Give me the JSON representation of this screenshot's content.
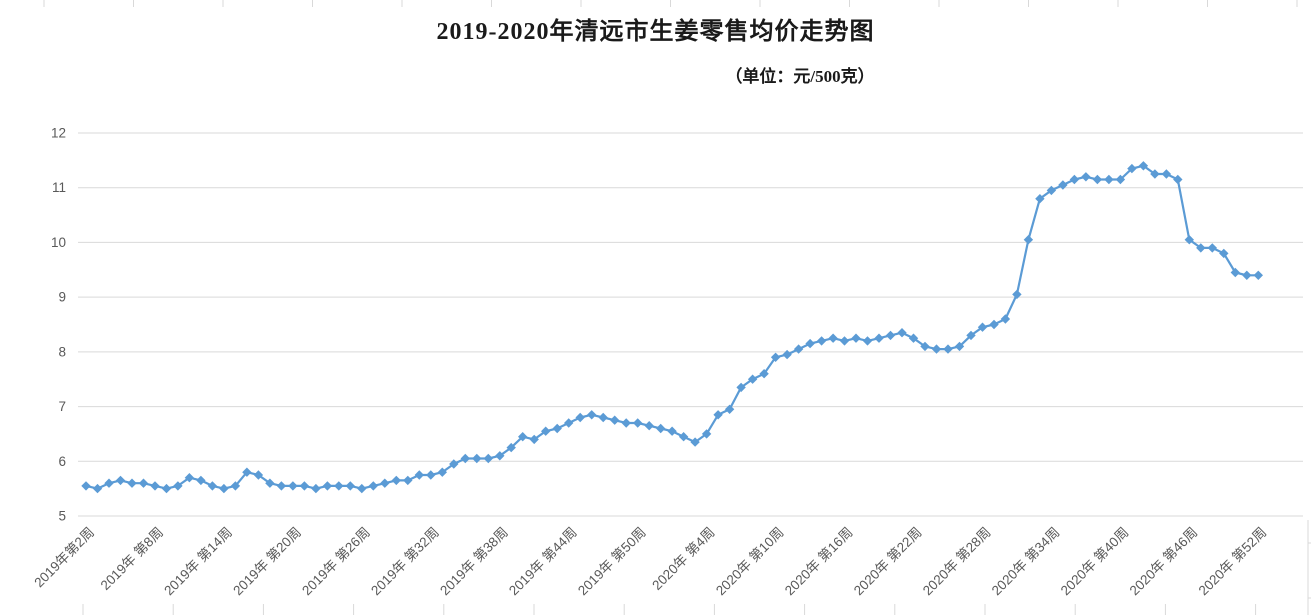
{
  "window": {
    "background": "#ffffff"
  },
  "chart_data": {
    "type": "line",
    "title": "2019-2020年清远市生姜零售均价走势图",
    "subtitle": "（单位：元/500克）",
    "xlabel": "",
    "ylabel": "",
    "ylim": [
      5,
      12
    ],
    "y_ticks": [
      5,
      6,
      7,
      8,
      9,
      10,
      11,
      12
    ],
    "grid": "horizontal",
    "legend_position": "none",
    "marker": "diamond",
    "x_points_per_tick": 6,
    "x_tick_labels": [
      "2019年第2周",
      "2019年 第8周",
      "2019年 第14周",
      "2019年 第20周",
      "2019年 第26周",
      "2019年 第32周",
      "2019年 第38周",
      "2019年 第44周",
      "2019年 第50周",
      "2020年 第4周",
      "2020年 第10周",
      "2020年 第16周",
      "2020年 第22周",
      "2020年 第28周",
      "2020年 第34周",
      "2020年 第40周",
      "2020年 第46周",
      "2020年 第52周"
    ],
    "values": [
      5.55,
      5.5,
      5.6,
      5.65,
      5.6,
      5.6,
      5.55,
      5.5,
      5.55,
      5.7,
      5.65,
      5.55,
      5.5,
      5.55,
      5.8,
      5.75,
      5.6,
      5.55,
      5.55,
      5.55,
      5.5,
      5.55,
      5.55,
      5.55,
      5.5,
      5.55,
      5.6,
      5.65,
      5.65,
      5.75,
      5.75,
      5.8,
      5.95,
      6.05,
      6.05,
      6.05,
      6.1,
      6.25,
      6.45,
      6.4,
      6.55,
      6.6,
      6.7,
      6.8,
      6.85,
      6.8,
      6.75,
      6.7,
      6.7,
      6.65,
      6.6,
      6.55,
      6.45,
      6.35,
      6.5,
      6.85,
      6.95,
      7.35,
      7.5,
      7.6,
      7.9,
      7.95,
      8.05,
      8.15,
      8.2,
      8.25,
      8.2,
      8.25,
      8.2,
      8.25,
      8.3,
      8.35,
      8.25,
      8.1,
      8.05,
      8.05,
      8.1,
      8.3,
      8.45,
      8.5,
      8.6,
      9.05,
      10.05,
      10.8,
      10.95,
      11.05,
      11.15,
      11.2,
      11.15,
      11.15,
      11.15,
      11.35,
      11.4,
      11.25,
      11.25,
      11.15,
      10.05,
      9.9,
      9.9,
      9.8,
      9.45,
      9.4,
      9.4
    ],
    "colors": {
      "series": "#5B9BD5",
      "gridline": "#D9D9D9",
      "axis_text": "#595959",
      "title_text": "#1a1a1a",
      "sheet_grid": "#D9D9D9"
    }
  }
}
